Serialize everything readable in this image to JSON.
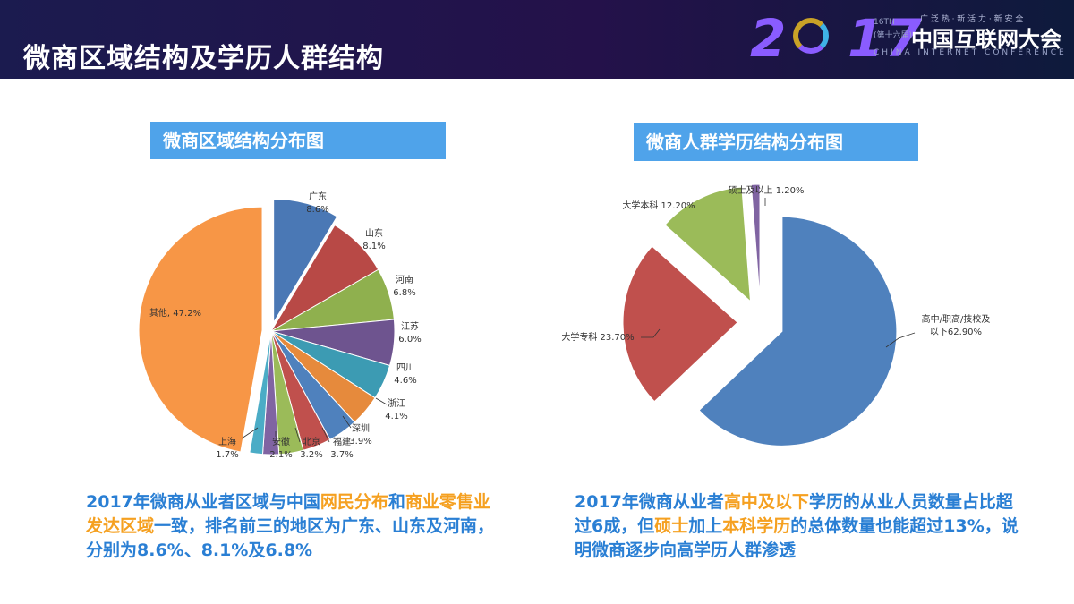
{
  "header": {
    "title": "微商区域结构及学历人群结构",
    "logo": {
      "year_a": "2",
      "year_b": "17",
      "slogan": "广 泛 热 · 新 活 力 · 新 安 全",
      "edition_en": "16TH",
      "edition_cn": "(第十六届)",
      "name": "中国互联网大会",
      "name_en": "CHINA INTERNET CONFERENCE"
    }
  },
  "colors": {
    "header_bg": "#1b1b4f",
    "panel_title_bg": "#4fa3ea",
    "caption_text": "#2a7fd4",
    "caption_highlight": "#f5a020"
  },
  "left_panel": {
    "title": "微商区域结构分布图",
    "caption": {
      "p1": "2017年微商从业者区域与中国",
      "h1": "网民分布",
      "p2": "和",
      "h2": "商业零售业发达区域",
      "p3": "一致，排名前三的地区为广东、山东及河南，分别为8.6%、8.1%及6.8%"
    }
  },
  "right_panel": {
    "title": "微商人群学历结构分布图",
    "caption": {
      "p1": "2017年微商从业者",
      "h1": "高中及以下",
      "p2": "学历的从业人员数量占比超过6成，但",
      "h2": "硕士",
      "p3": "加上",
      "h3": "本科学历",
      "p4": "的总体数量也能超过13%，说明微商逐步向高学历人群渗透"
    }
  },
  "chart_data": [
    {
      "type": "pie",
      "title": "微商区域结构分布图",
      "slices": [
        {
          "name": "广东",
          "value": 8.6,
          "label": "8.6%",
          "color": "#4a78b5",
          "exploded": true
        },
        {
          "name": "山东",
          "value": 8.1,
          "label": "8.1%",
          "color": "#b84946",
          "exploded": false
        },
        {
          "name": "河南",
          "value": 6.8,
          "label": "6.8%",
          "color": "#8fb04e",
          "exploded": false
        },
        {
          "name": "江苏",
          "value": 6.0,
          "label": "6.0%",
          "color": "#6e548f",
          "exploded": false
        },
        {
          "name": "四川",
          "value": 4.6,
          "label": "4.6%",
          "color": "#3c9bb3",
          "exploded": false
        },
        {
          "name": "浙江",
          "value": 4.1,
          "label": "4.1%",
          "color": "#e68a3c",
          "exploded": false
        },
        {
          "name": "深圳",
          "value": 3.9,
          "label": "3.9%",
          "color": "#4f81bd",
          "exploded": false
        },
        {
          "name": "福建",
          "value": 3.7,
          "label": "3.7%",
          "color": "#c0504d",
          "exploded": false
        },
        {
          "name": "北京",
          "value": 3.2,
          "label": "3.2%",
          "color": "#9bbb59",
          "exploded": false
        },
        {
          "name": "安徽",
          "value": 2.1,
          "label": "2.1%",
          "color": "#8064a2",
          "exploded": false
        },
        {
          "name": "上海",
          "value": 1.7,
          "label": "1.7%",
          "color": "#4bacc6",
          "exploded": false
        },
        {
          "name": "其他",
          "value": 47.2,
          "label": "其他, 47.2%",
          "color": "#f79646",
          "exploded": true
        }
      ]
    },
    {
      "type": "pie",
      "title": "微商人群学历结构分布图",
      "slices": [
        {
          "name": "高中/职高/技校及以下",
          "value": 62.9,
          "label_line1": "高中/职高/技校及",
          "label_line2": "以下62.90%",
          "color": "#4f81bd",
          "exploded": true
        },
        {
          "name": "大学专科",
          "value": 23.7,
          "label": "大学专科 23.70%",
          "color": "#c0504d",
          "exploded": true
        },
        {
          "name": "大学本科",
          "value": 12.2,
          "label": "大学本科 12.20%",
          "color": "#9bbb59",
          "exploded": true
        },
        {
          "name": "硕士及以上",
          "value": 1.2,
          "label": "硕士及以上 1.20%",
          "color": "#8064a2",
          "exploded": true
        }
      ]
    }
  ]
}
